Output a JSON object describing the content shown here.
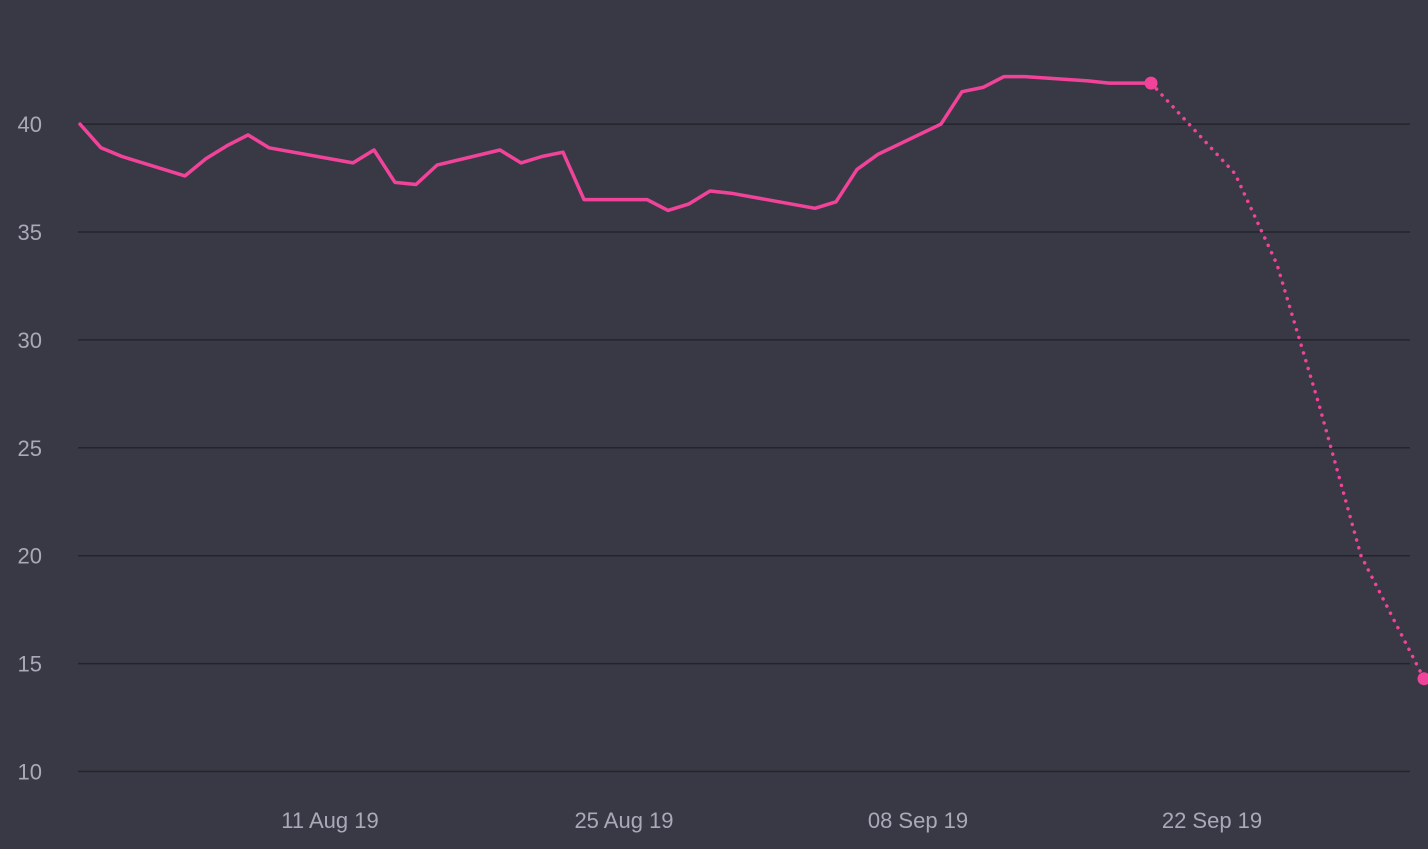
{
  "chart_data": {
    "type": "line",
    "title": "",
    "xlabel": "",
    "ylabel": "",
    "ylim": [
      10,
      43
    ],
    "y_ticks": [
      "10",
      "15",
      "20",
      "25",
      "30",
      "35",
      "40"
    ],
    "x_tick_labels": [
      "11 Aug 19",
      "25 Aug 19",
      "08 Sep 19",
      "22 Sep 19"
    ],
    "x_tick_dates": [
      "2019-08-11",
      "2019-08-25",
      "2019-09-08",
      "2019-09-22"
    ],
    "grid": true,
    "series": [
      {
        "style": "solid",
        "color": "#f2439a",
        "points": [
          [
            "2019-07-30",
            40.0
          ],
          [
            "2019-07-31",
            38.9
          ],
          [
            "2019-08-01",
            38.5
          ],
          [
            "2019-08-04",
            37.6
          ],
          [
            "2019-08-05",
            38.4
          ],
          [
            "2019-08-06",
            39.0
          ],
          [
            "2019-08-07",
            39.5
          ],
          [
            "2019-08-08",
            38.9
          ],
          [
            "2019-08-12",
            38.2
          ],
          [
            "2019-08-13",
            38.8
          ],
          [
            "2019-08-14",
            37.3
          ],
          [
            "2019-08-15",
            37.2
          ],
          [
            "2019-08-16",
            38.1
          ],
          [
            "2019-08-19",
            38.8
          ],
          [
            "2019-08-20",
            38.2
          ],
          [
            "2019-08-21",
            38.5
          ],
          [
            "2019-08-22",
            38.7
          ],
          [
            "2019-08-23",
            36.5
          ],
          [
            "2019-08-26",
            36.5
          ],
          [
            "2019-08-27",
            36.0
          ],
          [
            "2019-08-28",
            36.3
          ],
          [
            "2019-08-29",
            36.9
          ],
          [
            "2019-08-30",
            36.8
          ],
          [
            "2019-09-03",
            36.1
          ],
          [
            "2019-09-04",
            36.4
          ],
          [
            "2019-09-05",
            37.9
          ],
          [
            "2019-09-06",
            38.6
          ],
          [
            "2019-09-09",
            40.0
          ],
          [
            "2019-09-10",
            41.5
          ],
          [
            "2019-09-11",
            41.7
          ],
          [
            "2019-09-12",
            42.2
          ],
          [
            "2019-09-13",
            42.2
          ],
          [
            "2019-09-16",
            42.0
          ],
          [
            "2019-09-17",
            41.9
          ],
          [
            "2019-09-18",
            41.9
          ],
          [
            "2019-09-19",
            41.9
          ]
        ]
      },
      {
        "style": "dotted",
        "color": "#f2439a",
        "points": [
          [
            "2019-09-19",
            41.9
          ],
          [
            "2019-09-21",
            39.8
          ],
          [
            "2019-09-23",
            37.7
          ],
          [
            "2019-09-25",
            33.5
          ],
          [
            "2019-09-27",
            27.0
          ],
          [
            "2019-09-29",
            20.0
          ],
          [
            "2019-10-02",
            14.3
          ]
        ]
      }
    ],
    "end_markers": [
      [
        "2019-09-19",
        41.9
      ],
      [
        "2019-10-02",
        14.3
      ]
    ]
  }
}
